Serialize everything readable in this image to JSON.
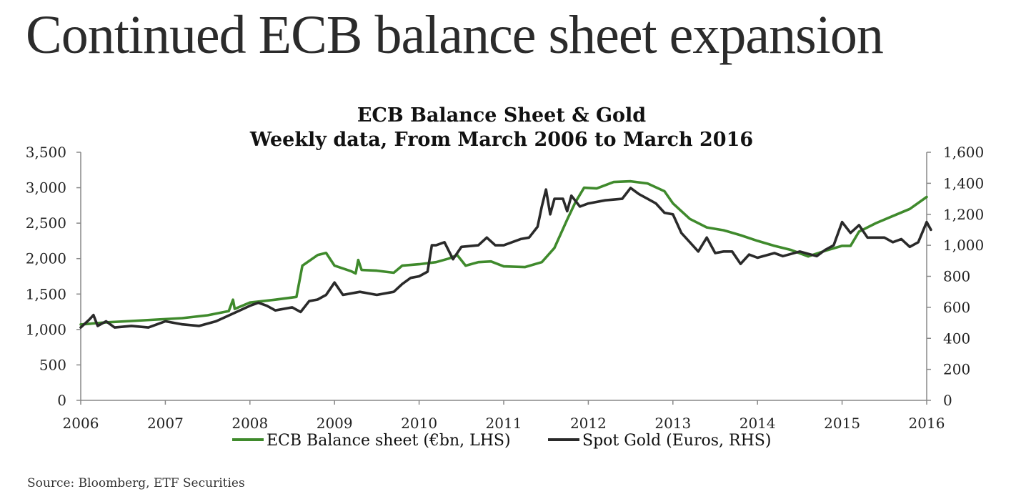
{
  "page_title": "Continued ECB balance sheet expansion",
  "source": "Source: Bloomberg, ETF Securities",
  "colors": {
    "ecb": "#3f8a2c",
    "gold": "#2a2a2a",
    "axis": "#888888"
  },
  "chart_data": {
    "type": "line",
    "title": [
      "ECB Balance Sheet & Gold",
      "Weekly data, From March 2006 to March 2016"
    ],
    "x_ticks": [
      "2006",
      "2007",
      "2008",
      "2009",
      "2010",
      "2011",
      "2012",
      "2013",
      "2014",
      "2015",
      "2016"
    ],
    "xlim": [
      2006,
      2016
    ],
    "y_left": {
      "lim": [
        0,
        3500
      ],
      "ticks": [
        0,
        500,
        1000,
        1500,
        2000,
        2500,
        3000,
        3500
      ],
      "tick_labels": [
        "0",
        "500",
        "1,000",
        "1,500",
        "2,000",
        "2,500",
        "3,000",
        "3,500"
      ]
    },
    "y_right": {
      "lim": [
        0,
        1600
      ],
      "ticks": [
        0,
        200,
        400,
        600,
        800,
        1000,
        1200,
        1400,
        1600
      ],
      "tick_labels": [
        "0",
        "200",
        "400",
        "600",
        "800",
        "1,000",
        "1,200",
        "1,400",
        "1,600"
      ]
    },
    "legend": {
      "placement": "bottom-center"
    },
    "series": [
      {
        "name": "ECB Balance sheet (€bn, LHS)",
        "axis": "left",
        "color": "#3f8a2c",
        "points": [
          [
            2006.0,
            1070
          ],
          [
            2006.3,
            1100
          ],
          [
            2006.6,
            1120
          ],
          [
            2006.9,
            1140
          ],
          [
            2007.2,
            1160
          ],
          [
            2007.5,
            1200
          ],
          [
            2007.75,
            1260
          ],
          [
            2007.8,
            1420
          ],
          [
            2007.82,
            1290
          ],
          [
            2008.0,
            1380
          ],
          [
            2008.3,
            1420
          ],
          [
            2008.55,
            1460
          ],
          [
            2008.62,
            1900
          ],
          [
            2008.8,
            2050
          ],
          [
            2008.9,
            2080
          ],
          [
            2009.0,
            1900
          ],
          [
            2009.2,
            1820
          ],
          [
            2009.25,
            1790
          ],
          [
            2009.28,
            1980
          ],
          [
            2009.32,
            1840
          ],
          [
            2009.5,
            1830
          ],
          [
            2009.7,
            1800
          ],
          [
            2009.8,
            1900
          ],
          [
            2010.0,
            1920
          ],
          [
            2010.2,
            1950
          ],
          [
            2010.35,
            2000
          ],
          [
            2010.45,
            2050
          ],
          [
            2010.55,
            1900
          ],
          [
            2010.7,
            1950
          ],
          [
            2010.85,
            1960
          ],
          [
            2011.0,
            1890
          ],
          [
            2011.25,
            1880
          ],
          [
            2011.45,
            1950
          ],
          [
            2011.6,
            2150
          ],
          [
            2011.75,
            2550
          ],
          [
            2011.85,
            2800
          ],
          [
            2011.95,
            3000
          ],
          [
            2012.1,
            2990
          ],
          [
            2012.3,
            3080
          ],
          [
            2012.5,
            3090
          ],
          [
            2012.7,
            3060
          ],
          [
            2012.9,
            2950
          ],
          [
            2013.0,
            2780
          ],
          [
            2013.2,
            2560
          ],
          [
            2013.4,
            2440
          ],
          [
            2013.6,
            2400
          ],
          [
            2013.8,
            2330
          ],
          [
            2014.0,
            2250
          ],
          [
            2014.2,
            2180
          ],
          [
            2014.4,
            2120
          ],
          [
            2014.6,
            2030
          ],
          [
            2014.8,
            2110
          ],
          [
            2015.0,
            2180
          ],
          [
            2015.1,
            2180
          ],
          [
            2015.2,
            2380
          ],
          [
            2015.4,
            2500
          ],
          [
            2015.6,
            2600
          ],
          [
            2015.8,
            2700
          ],
          [
            2016.0,
            2870
          ]
        ]
      },
      {
        "name": "Spot Gold (Euros, RHS)",
        "axis": "right",
        "color": "#2a2a2a",
        "points": [
          [
            2006.0,
            470
          ],
          [
            2006.1,
            520
          ],
          [
            2006.15,
            550
          ],
          [
            2006.2,
            480
          ],
          [
            2006.3,
            510
          ],
          [
            2006.4,
            470
          ],
          [
            2006.6,
            480
          ],
          [
            2006.8,
            470
          ],
          [
            2007.0,
            510
          ],
          [
            2007.2,
            490
          ],
          [
            2007.4,
            480
          ],
          [
            2007.6,
            510
          ],
          [
            2007.8,
            560
          ],
          [
            2008.0,
            610
          ],
          [
            2008.1,
            630
          ],
          [
            2008.2,
            610
          ],
          [
            2008.3,
            580
          ],
          [
            2008.5,
            600
          ],
          [
            2008.6,
            570
          ],
          [
            2008.7,
            640
          ],
          [
            2008.8,
            650
          ],
          [
            2008.9,
            680
          ],
          [
            2009.0,
            760
          ],
          [
            2009.1,
            680
          ],
          [
            2009.3,
            700
          ],
          [
            2009.5,
            680
          ],
          [
            2009.7,
            700
          ],
          [
            2009.8,
            750
          ],
          [
            2009.9,
            790
          ],
          [
            2010.0,
            800
          ],
          [
            2010.1,
            830
          ],
          [
            2010.15,
            1000
          ],
          [
            2010.2,
            1000
          ],
          [
            2010.3,
            1020
          ],
          [
            2010.4,
            910
          ],
          [
            2010.5,
            990
          ],
          [
            2010.7,
            1000
          ],
          [
            2010.8,
            1050
          ],
          [
            2010.9,
            1000
          ],
          [
            2011.0,
            1000
          ],
          [
            2011.2,
            1040
          ],
          [
            2011.3,
            1050
          ],
          [
            2011.4,
            1120
          ],
          [
            2011.45,
            1250
          ],
          [
            2011.5,
            1360
          ],
          [
            2011.55,
            1200
          ],
          [
            2011.6,
            1300
          ],
          [
            2011.7,
            1300
          ],
          [
            2011.75,
            1220
          ],
          [
            2011.8,
            1320
          ],
          [
            2011.9,
            1250
          ],
          [
            2012.0,
            1270
          ],
          [
            2012.2,
            1290
          ],
          [
            2012.4,
            1300
          ],
          [
            2012.5,
            1370
          ],
          [
            2012.6,
            1330
          ],
          [
            2012.7,
            1300
          ],
          [
            2012.8,
            1270
          ],
          [
            2012.9,
            1210
          ],
          [
            2013.0,
            1200
          ],
          [
            2013.1,
            1080
          ],
          [
            2013.2,
            1020
          ],
          [
            2013.3,
            960
          ],
          [
            2013.4,
            1050
          ],
          [
            2013.5,
            950
          ],
          [
            2013.6,
            960
          ],
          [
            2013.7,
            960
          ],
          [
            2013.8,
            880
          ],
          [
            2013.9,
            940
          ],
          [
            2014.0,
            920
          ],
          [
            2014.2,
            950
          ],
          [
            2014.3,
            930
          ],
          [
            2014.5,
            960
          ],
          [
            2014.7,
            930
          ],
          [
            2014.8,
            970
          ],
          [
            2014.9,
            1000
          ],
          [
            2015.0,
            1150
          ],
          [
            2015.1,
            1080
          ],
          [
            2015.2,
            1130
          ],
          [
            2015.3,
            1050
          ],
          [
            2015.5,
            1050
          ],
          [
            2015.6,
            1020
          ],
          [
            2015.7,
            1040
          ],
          [
            2015.8,
            990
          ],
          [
            2015.9,
            1020
          ],
          [
            2016.0,
            1150
          ],
          [
            2016.05,
            1100
          ]
        ]
      }
    ]
  }
}
